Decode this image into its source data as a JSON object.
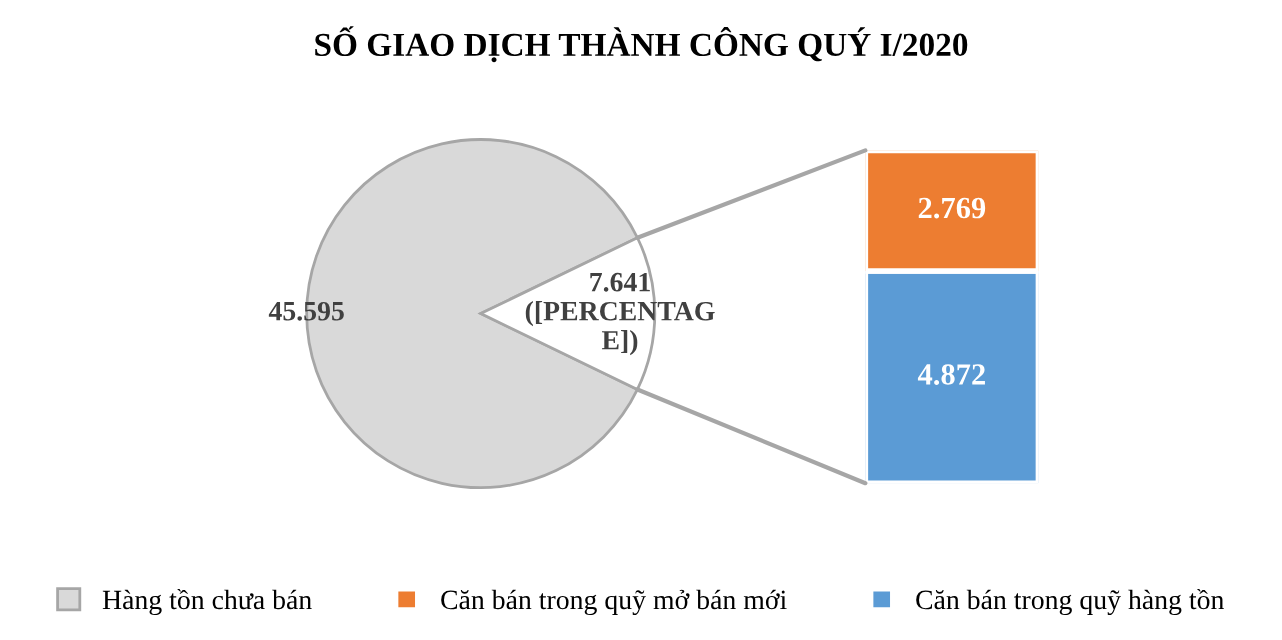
{
  "chart_data": [
    {
      "type": "pie",
      "title": "SỐ GIAO DỊCH THÀNH CÔNG QUÝ I/2020",
      "categories": [
        "Hàng tồn chưa bán",
        null
      ],
      "values": [
        45.595,
        7.641
      ],
      "colors": [
        "#d9d9d9",
        "#ffffff"
      ],
      "value_labels": [
        "45.595",
        "7.641\n([PERCENTAG\nE])"
      ],
      "legend": "bottom"
    },
    {
      "type": "bar",
      "stacked": true,
      "categories": [
        null
      ],
      "data_labels": true,
      "legend": "bottom",
      "series": [
        {
          "name": "Căn bán trong quỹ hàng tồn",
          "color": "#5b9bd5",
          "values": [
            4.872
          ]
        },
        {
          "name": "Căn bán trong quỹ mở bán mới",
          "color": "#ed7d31",
          "values": [
            2.769
          ]
        }
      ]
    }
  ]
}
